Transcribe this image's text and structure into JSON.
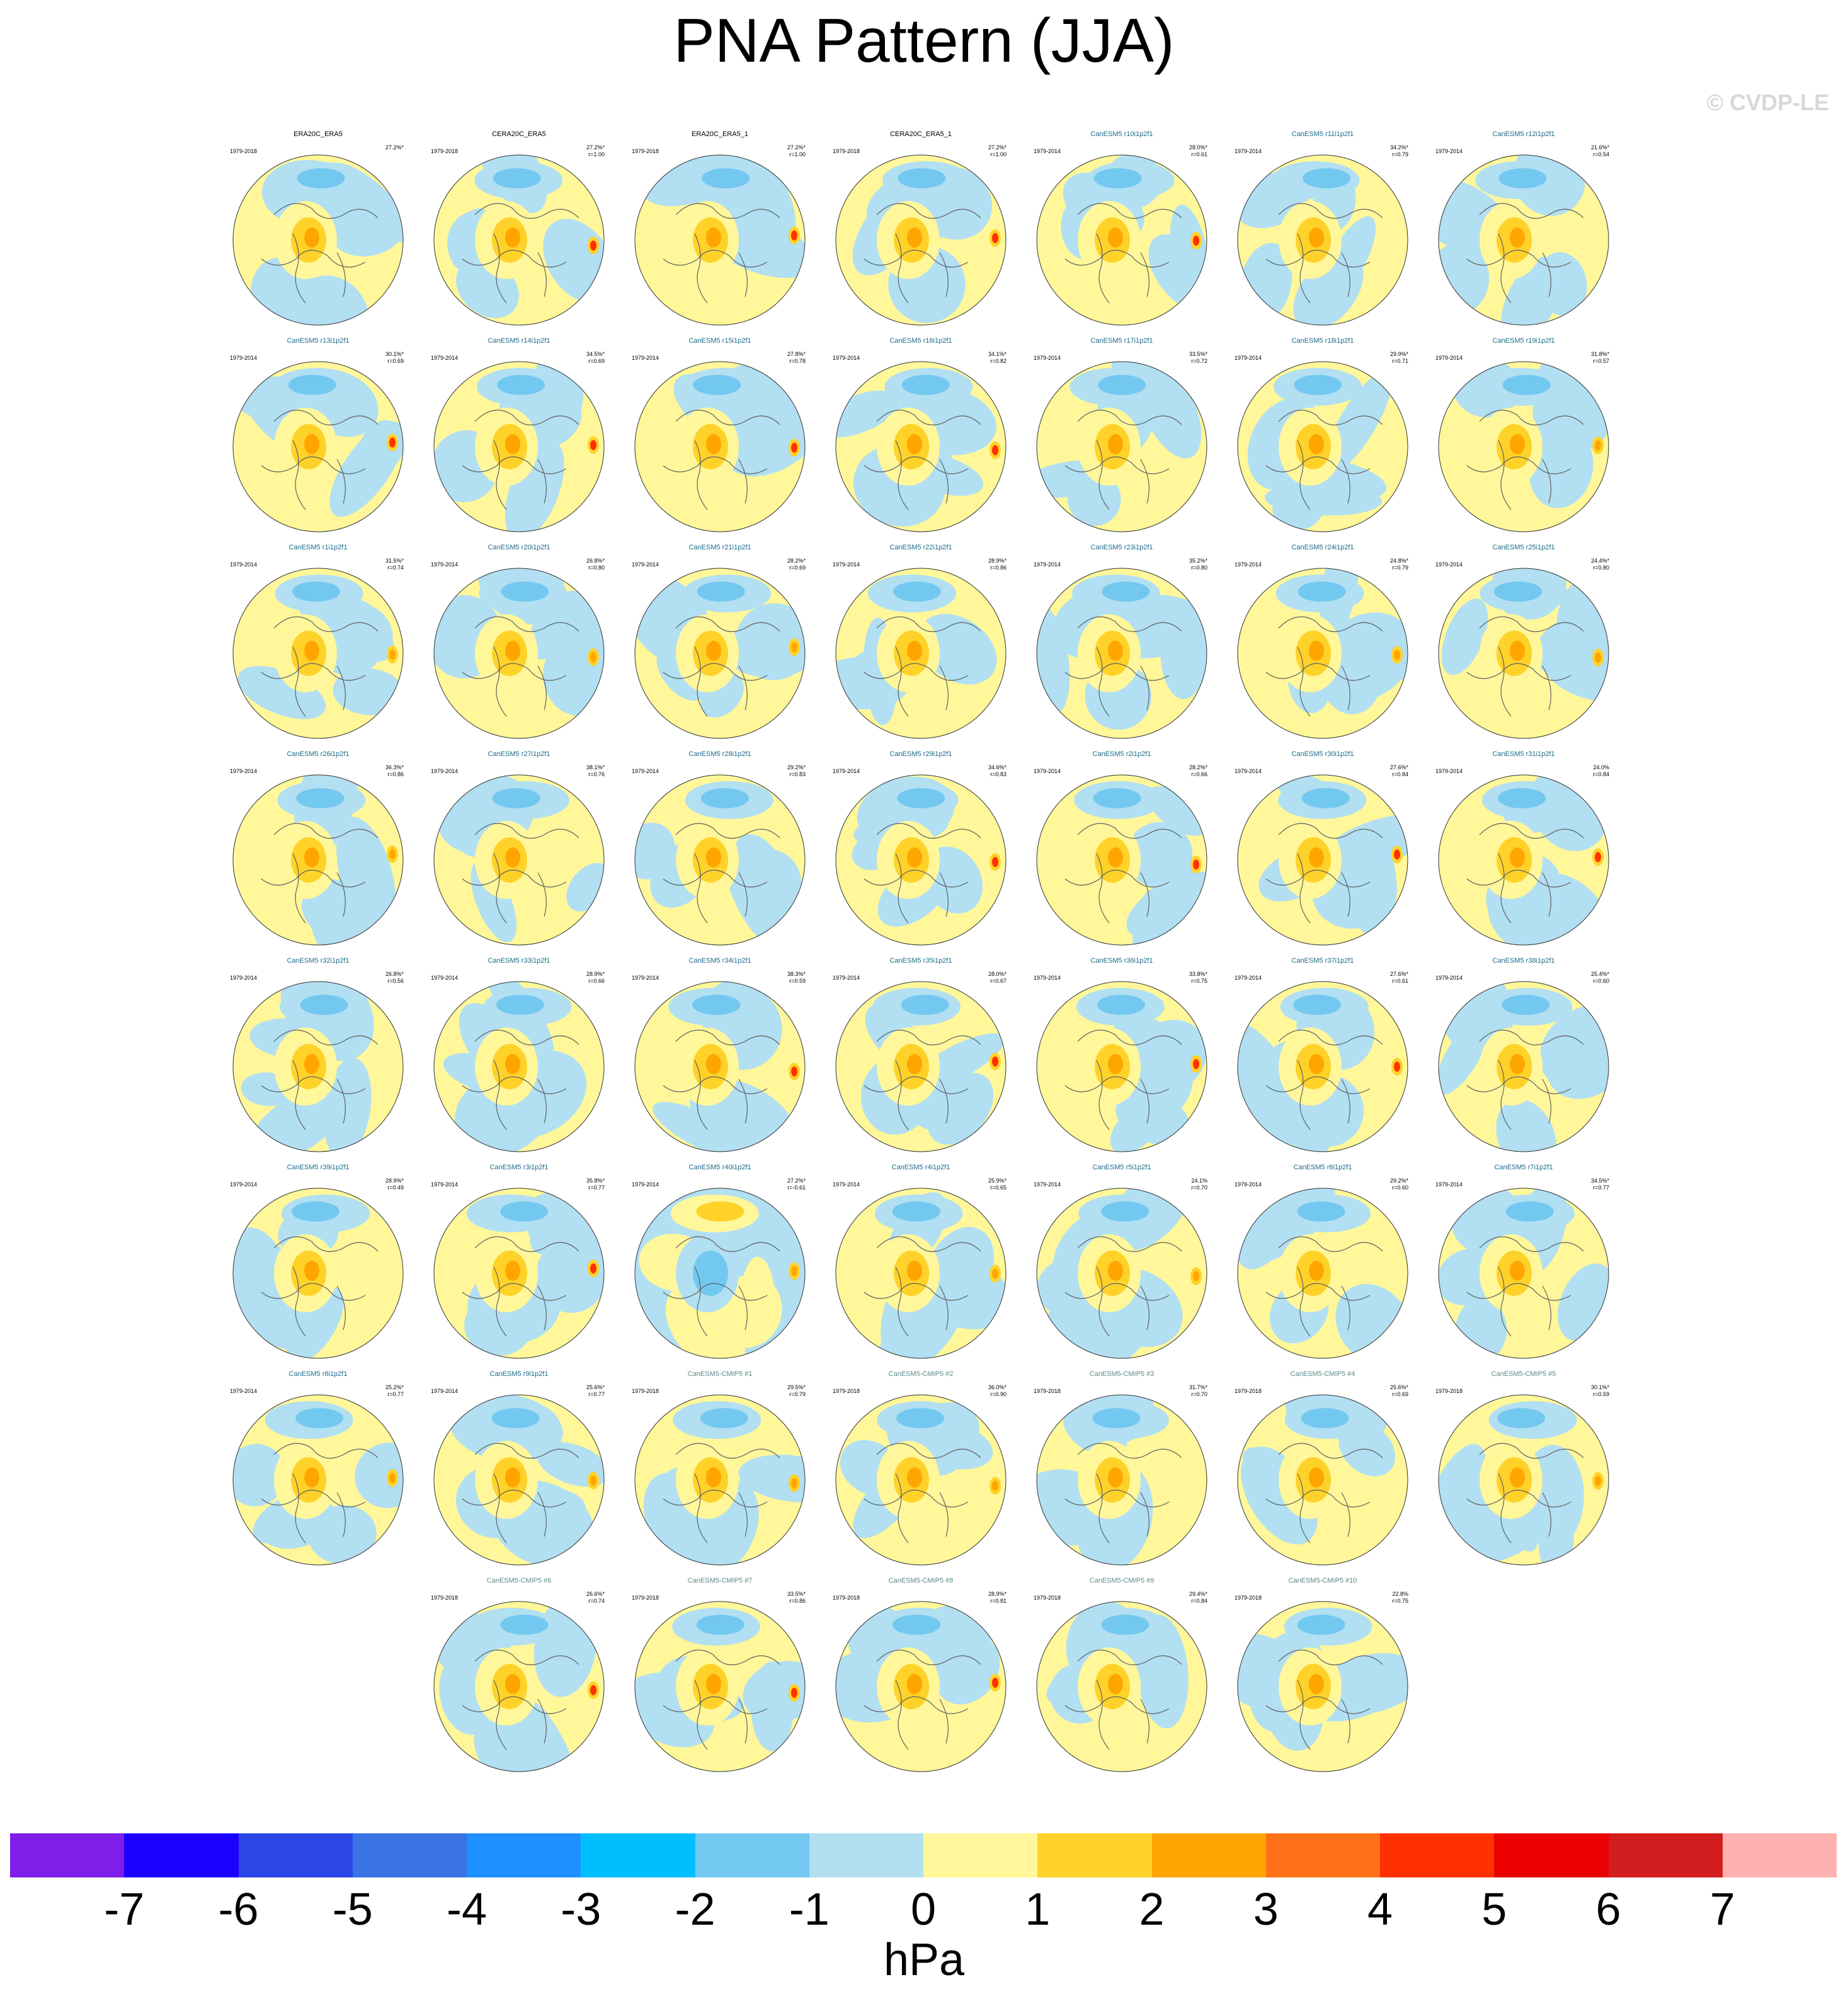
{
  "title": "PNA Pattern (JJA)",
  "watermark": "© CVDP-LE",
  "colorbar": {
    "colors": [
      "#7e1ee8",
      "#1c00ff",
      "#2b46e6",
      "#3a73e3",
      "#1e90ff",
      "#00bfff",
      "#73c8f0",
      "#b2dff2",
      "#fff79a",
      "#ffd229",
      "#ffa500",
      "#ff7119",
      "#ff3100",
      "#ea0000",
      "#d11d1d",
      "#ffb1b1"
    ],
    "ticks": [
      "-7",
      "-6",
      "-5",
      "-4",
      "-3",
      "-2",
      "-1",
      "0",
      "1",
      "2",
      "3",
      "4",
      "5",
      "6",
      "7"
    ],
    "units": "hPa"
  },
  "panels": [
    {
      "name": "ERA20C_ERA5",
      "years": "1979-2018",
      "pct": "27.2%*",
      "r": "",
      "obs": true
    },
    {
      "name": "CERA20C_ERA5",
      "years": "1979-2018",
      "pct": "27.2%*",
      "r": "r=1.00",
      "obs": true
    },
    {
      "name": "ERA20C_ERA5_1",
      "years": "1979-2018",
      "pct": "27.2%*",
      "r": "r=1.00",
      "obs": true
    },
    {
      "name": "CERA20C_ERA5_1",
      "years": "1979-2018",
      "pct": "27.2%*",
      "r": "r=1.00",
      "obs": true
    },
    {
      "name": "CanESM5 r10i1p2f1",
      "years": "1979-2014",
      "pct": "28.0%*",
      "r": "r=0.61"
    },
    {
      "name": "CanESM5 r11i1p2f1",
      "years": "1979-2014",
      "pct": "34.2%*",
      "r": "r=0.79"
    },
    {
      "name": "CanESM5 r12i1p2f1",
      "years": "1979-2014",
      "pct": "21.6%*",
      "r": "r=0.54"
    },
    {
      "name": "CanESM5 r13i1p2f1",
      "years": "1979-2014",
      "pct": "30.1%*",
      "r": "r=0.69"
    },
    {
      "name": "CanESM5 r14i1p2f1",
      "years": "1979-2014",
      "pct": "34.5%*",
      "r": "r=0.69"
    },
    {
      "name": "CanESM5 r15i1p2f1",
      "years": "1979-2014",
      "pct": "27.8%*",
      "r": "r=0.78"
    },
    {
      "name": "CanESM5 r16i1p2f1",
      "years": "1979-2014",
      "pct": "34.1%*",
      "r": "r=0.82"
    },
    {
      "name": "CanESM5 r17i1p2f1",
      "years": "1979-2014",
      "pct": "33.5%*",
      "r": "r=0.72"
    },
    {
      "name": "CanESM5 r18i1p2f1",
      "years": "1979-2014",
      "pct": "29.9%*",
      "r": "r=0.71"
    },
    {
      "name": "CanESM5 r19i1p2f1",
      "years": "1979-2014",
      "pct": "31.8%*",
      "r": "r=0.57"
    },
    {
      "name": "CanESM5 r1i1p2f1",
      "years": "1979-2014",
      "pct": "31.5%*",
      "r": "r=0.74"
    },
    {
      "name": "CanESM5 r20i1p2f1",
      "years": "1979-2014",
      "pct": "26.8%*",
      "r": "r=0.80"
    },
    {
      "name": "CanESM5 r21i1p2f1",
      "years": "1979-2014",
      "pct": "28.2%*",
      "r": "r=0.69"
    },
    {
      "name": "CanESM5 r22i1p2f1",
      "years": "1979-2014",
      "pct": "28.9%*",
      "r": "r=0.86"
    },
    {
      "name": "CanESM5 r23i1p2f1",
      "years": "1979-2014",
      "pct": "35.2%*",
      "r": "r=0.80"
    },
    {
      "name": "CanESM5 r24i1p2f1",
      "years": "1979-2014",
      "pct": "24.8%*",
      "r": "r=0.79"
    },
    {
      "name": "CanESM5 r25i1p2f1",
      "years": "1979-2014",
      "pct": "24.4%*",
      "r": "r=0.80"
    },
    {
      "name": "CanESM5 r26i1p2f1",
      "years": "1979-2014",
      "pct": "36.3%*",
      "r": "r=0.86"
    },
    {
      "name": "CanESM5 r27i1p2f1",
      "years": "1979-2014",
      "pct": "38.1%*",
      "r": "r=0.76"
    },
    {
      "name": "CanESM5 r28i1p2f1",
      "years": "1979-2014",
      "pct": "29.2%*",
      "r": "r=0.83"
    },
    {
      "name": "CanESM5 r29i1p2f1",
      "years": "1979-2014",
      "pct": "34.6%*",
      "r": "r=0.83"
    },
    {
      "name": "CanESM5 r2i1p2f1",
      "years": "1979-2014",
      "pct": "28.2%*",
      "r": "r=0.66"
    },
    {
      "name": "CanESM5 r30i1p2f1",
      "years": "1979-2014",
      "pct": "27.6%*",
      "r": "r=0.84"
    },
    {
      "name": "CanESM5 r31i1p2f1",
      "years": "1979-2014",
      "pct": "24.0%",
      "r": "r=0.84"
    },
    {
      "name": "CanESM5 r32i1p2f1",
      "years": "1979-2014",
      "pct": "26.8%*",
      "r": "r=0.56"
    },
    {
      "name": "CanESM5 r33i1p2f1",
      "years": "1979-2014",
      "pct": "28.9%*",
      "r": "r=0.66"
    },
    {
      "name": "CanESM5 r34i1p2f1",
      "years": "1979-2014",
      "pct": "38.3%*",
      "r": "r=0.59"
    },
    {
      "name": "CanESM5 r35i1p2f1",
      "years": "1979-2014",
      "pct": "28.0%*",
      "r": "r=0.67"
    },
    {
      "name": "CanESM5 r36i1p2f1",
      "years": "1979-2014",
      "pct": "33.8%*",
      "r": "r=0.75"
    },
    {
      "name": "CanESM5 r37i1p2f1",
      "years": "1979-2014",
      "pct": "27.6%*",
      "r": "r=0.61"
    },
    {
      "name": "CanESM5 r38i1p2f1",
      "years": "1979-2014",
      "pct": "25.4%*",
      "r": "r=0.60"
    },
    {
      "name": "CanESM5 r39i1p2f1",
      "years": "1979-2014",
      "pct": "28.9%*",
      "r": "r=0.49"
    },
    {
      "name": "CanESM5 r3i1p2f1",
      "years": "1979-2014",
      "pct": "35.8%*",
      "r": "r=0.77"
    },
    {
      "name": "CanESM5 r40i1p2f1",
      "years": "1979-2014",
      "pct": "27.2%*",
      "r": "r=-0.61"
    },
    {
      "name": "CanESM5 r4i1p2f1",
      "years": "1979-2014",
      "pct": "25.9%*",
      "r": "r=0.65"
    },
    {
      "name": "CanESM5 r5i1p2f1",
      "years": "1979-2014",
      "pct": "24.1%",
      "r": "r=0.70"
    },
    {
      "name": "CanESM5 r6i1p2f1",
      "years": "1979-2014",
      "pct": "29.2%*",
      "r": "r=0.60"
    },
    {
      "name": "CanESM5 r7i1p2f1",
      "years": "1979-2014",
      "pct": "34.5%*",
      "r": "r=0.77"
    },
    {
      "name": "CanESM5 r8i1p2f1",
      "years": "1979-2014",
      "pct": "25.2%*",
      "r": "r=0.77"
    },
    {
      "name": "CanESM5 r9i1p2f1",
      "years": "1979-2014",
      "pct": "25.6%*",
      "r": "r=0.77"
    },
    {
      "name": "CanESM5-CMIP5 #1",
      "years": "1979-2018",
      "pct": "29.5%*",
      "r": "r=0.79",
      "cmip5": true
    },
    {
      "name": "CanESM5-CMIP5 #2",
      "years": "1979-2018",
      "pct": "36.0%*",
      "r": "r=0.90",
      "cmip5": true
    },
    {
      "name": "CanESM5-CMIP5 #3",
      "years": "1979-2018",
      "pct": "31.7%*",
      "r": "r=0.70",
      "cmip5": true
    },
    {
      "name": "CanESM5-CMIP5 #4",
      "years": "1979-2018",
      "pct": "25.6%*",
      "r": "r=0.69",
      "cmip5": true
    },
    {
      "name": "CanESM5-CMIP5 #5",
      "years": "1979-2018",
      "pct": "30.1%*",
      "r": "r=0.59",
      "cmip5": true
    },
    {
      "name": "CanESM5-CMIP5 #6",
      "years": "1979-2018",
      "pct": "26.6%*",
      "r": "r=0.74",
      "cmip5": true
    },
    {
      "name": "CanESM5-CMIP5 #7",
      "years": "1979-2018",
      "pct": "33.5%*",
      "r": "r=0.86",
      "cmip5": true
    },
    {
      "name": "CanESM5-CMIP5 #8",
      "years": "1979-2018",
      "pct": "28.9%*",
      "r": "r=0.81",
      "cmip5": true
    },
    {
      "name": "CanESM5-CMIP5 #9",
      "years": "1979-2018",
      "pct": "29.4%*",
      "r": "r=0.84",
      "cmip5": true
    },
    {
      "name": "CanESM5-CMIP5 #10",
      "years": "1979-2018",
      "pct": "22.8%",
      "r": "r=0.75",
      "cmip5": true
    }
  ]
}
